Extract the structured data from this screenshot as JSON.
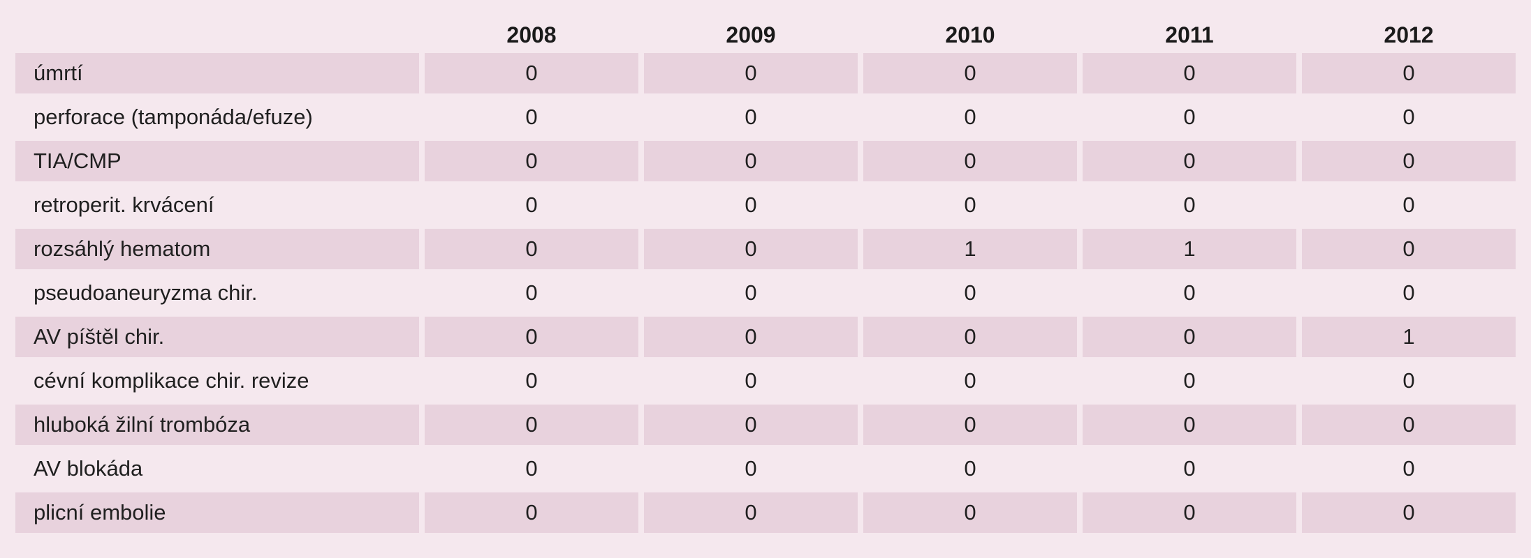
{
  "table": {
    "columns": [
      "",
      "2008",
      "2009",
      "2010",
      "2011",
      "2012"
    ],
    "rows": [
      {
        "label": "úmrtí",
        "values": [
          "0",
          "0",
          "0",
          "0",
          "0"
        ]
      },
      {
        "label": "perforace (tamponáda/efuze)",
        "values": [
          "0",
          "0",
          "0",
          "0",
          "0"
        ]
      },
      {
        "label": "TIA/CMP",
        "values": [
          "0",
          "0",
          "0",
          "0",
          "0"
        ]
      },
      {
        "label": "retroperit. krvácení",
        "values": [
          "0",
          "0",
          "0",
          "0",
          "0"
        ]
      },
      {
        "label": "rozsáhlý hematom",
        "values": [
          "0",
          "0",
          "1",
          "1",
          "0"
        ]
      },
      {
        "label": "pseudoaneuryzma chir.",
        "values": [
          "0",
          "0",
          "0",
          "0",
          "0"
        ]
      },
      {
        "label": "AV píštěl chir.",
        "values": [
          "0",
          "0",
          "0",
          "0",
          "1"
        ]
      },
      {
        "label": "cévní komplikace chir. revize",
        "values": [
          "0",
          "0",
          "0",
          "0",
          "0"
        ]
      },
      {
        "label": "hluboká žilní trombóza",
        "values": [
          "0",
          "0",
          "0",
          "0",
          "0"
        ]
      },
      {
        "label": "AV blokáda",
        "values": [
          "0",
          "0",
          "0",
          "0",
          "0"
        ]
      },
      {
        "label": "plicní embolie",
        "values": [
          "0",
          "0",
          "0",
          "0",
          "0"
        ]
      }
    ]
  },
  "colors": {
    "background": "#f5e8ee",
    "row_shade": "#e8d2dd",
    "text": "#1f1f1f"
  }
}
